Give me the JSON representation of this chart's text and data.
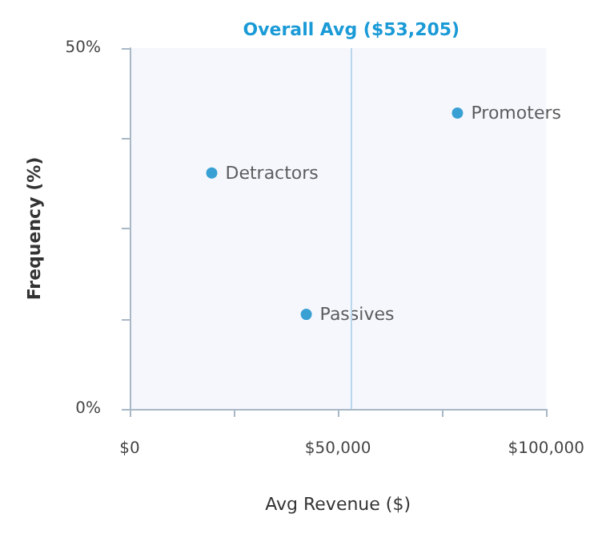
{
  "chart_data": {
    "type": "scatter",
    "xlabel": "Avg Revenue ($)",
    "ylabel": "Frequency (%)",
    "xlim": [
      0,
      100000
    ],
    "xticks": [
      {
        "value": 0,
        "label": "$0"
      },
      {
        "value": 25000,
        "label": null
      },
      {
        "value": 50000,
        "label": "$50,000"
      },
      {
        "value": 75000,
        "label": null
      },
      {
        "value": 100000,
        "label": "$100,000"
      }
    ],
    "ylim": [
      0,
      50
    ],
    "yticks": [
      {
        "value": 0,
        "label": "0%"
      },
      {
        "value": 12.5,
        "label": null
      },
      {
        "value": 25,
        "label": null
      },
      {
        "value": 37.5,
        "label": null
      },
      {
        "value": 50,
        "label": "50%"
      }
    ],
    "series": [
      {
        "name": "Detractors",
        "color": "#0a8ac9",
        "x": [
          19700
        ],
        "values": [
          32.7
        ]
      },
      {
        "name": "Passives",
        "color": "#0a8ac9",
        "x": [
          42400
        ],
        "values": [
          13.1
        ]
      },
      {
        "name": "Promoters",
        "color": "#0a8ac9",
        "x": [
          78700
        ],
        "values": [
          41.0
        ]
      }
    ],
    "ref_lines": [
      {
        "axis": "x",
        "value": 53205,
        "label": "Overall Avg ($53,205)",
        "color": "#b9d7ec"
      }
    ],
    "grid": false,
    "legend": false,
    "marker": "circle"
  }
}
